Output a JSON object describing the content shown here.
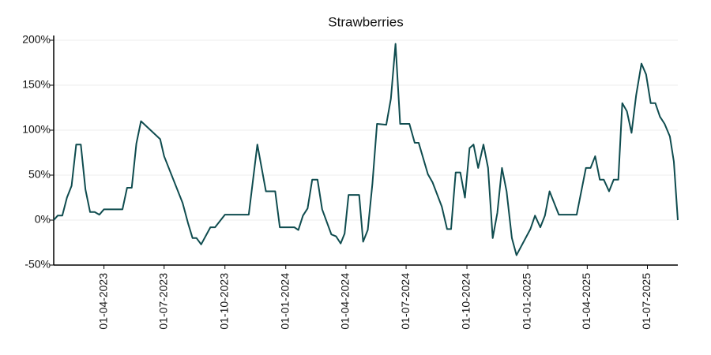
{
  "chart_data": {
    "type": "line",
    "title": "Strawberries",
    "x": [
      "15-01-2023",
      "21-01-2023",
      "28-01-2023",
      "04-02-2023",
      "11-02-2023",
      "18-02-2023",
      "25-02-2023",
      "04-03-2023",
      "11-03-2023",
      "18-03-2023",
      "25-03-2023",
      "01-04-2023",
      "29-04-2023",
      "06-05-2023",
      "13-05-2023",
      "20-05-2023",
      "27-05-2023",
      "25-06-2023",
      "01-07-2023",
      "29-07-2023",
      "06-08-2023",
      "13-08-2023",
      "19-08-2023",
      "26-08-2023",
      "09-09-2023",
      "16-09-2023",
      "01-10-2023",
      "06-11-2023",
      "19-11-2023",
      "02-12-2023",
      "16-12-2023",
      "23-12-2023",
      "14-01-2024",
      "20-01-2024",
      "27-01-2024",
      "03-02-2024",
      "10-02-2024",
      "18-02-2024",
      "25-02-2024",
      "10-03-2024",
      "17-03-2024",
      "24-03-2024",
      "30-03-2024",
      "05-04-2024",
      "21-04-2024",
      "27-04-2024",
      "04-05-2024",
      "11-05-2024",
      "18-05-2024",
      "01-06-2024",
      "08-06-2024",
      "15-06-2024",
      "22-06-2024",
      "06-07-2024",
      "14-07-2024",
      "20-07-2024",
      "03-08-2024",
      "10-08-2024",
      "24-08-2024",
      "01-09-2024",
      "07-09-2024",
      "14-09-2024",
      "21-09-2024",
      "28-09-2024",
      "05-10-2024",
      "11-10-2024",
      "18-10-2024",
      "26-10-2024",
      "02-11-2024",
      "09-11-2024",
      "16-11-2024",
      "23-11-2024",
      "30-11-2024",
      "08-12-2024",
      "15-12-2024",
      "05-01-2025",
      "12-01-2025",
      "20-01-2025",
      "27-01-2025",
      "03-02-2025",
      "17-02-2025",
      "16-03-2025",
      "30-03-2025",
      "06-04-2025",
      "13-04-2025",
      "20-04-2025",
      "26-04-2025",
      "04-05-2025",
      "11-05-2025",
      "18-05-2025",
      "24-05-2025",
      "31-05-2025",
      "07-06-2025",
      "14-06-2025",
      "22-06-2025",
      "29-06-2025",
      "06-07-2025",
      "13-07-2025",
      "20-07-2025",
      "27-07-2025",
      "04-08-2025",
      "10-08-2025",
      "16-08-2025"
    ],
    "series": [
      {
        "name": "Strawberries",
        "color": "#0f4c4f",
        "values": [
          0,
          5,
          5,
          25,
          38,
          84,
          84,
          34,
          9,
          9,
          6,
          12,
          12,
          36,
          36,
          85,
          110,
          90,
          71,
          19,
          -3,
          -20,
          -20,
          -27,
          -8,
          -8,
          6,
          6,
          84,
          32,
          32,
          -8,
          -8,
          -11,
          5,
          13,
          45,
          45,
          12,
          -16,
          -18,
          -26,
          -15,
          28,
          28,
          -24,
          -11,
          40,
          107,
          106,
          135,
          196,
          107,
          107,
          86,
          86,
          51,
          42,
          15,
          -10,
          -10,
          53,
          53,
          25,
          80,
          84,
          58,
          84,
          58,
          -20,
          8,
          58,
          32,
          -20,
          -39,
          -10,
          5,
          -8,
          5,
          32,
          6,
          6,
          58,
          58,
          71,
          45,
          45,
          32,
          45,
          45,
          130,
          121,
          97,
          139,
          174,
          162,
          130,
          130,
          115,
          107,
          93,
          65,
          0
        ]
      }
    ],
    "xlim": [
      "15-01-2023",
      "16-08-2025"
    ],
    "xticks": [
      "01-04-2023",
      "01-07-2023",
      "01-10-2023",
      "01-01-2024",
      "01-04-2024",
      "01-07-2024",
      "01-10-2024",
      "01-01-2025",
      "01-04-2025",
      "01-07-2025"
    ],
    "ylim": [
      -50,
      200
    ],
    "yticks": [
      {
        "value": -50,
        "label": "-50%"
      },
      {
        "value": 0,
        "label": "0%"
      },
      {
        "value": 50,
        "label": "50%"
      },
      {
        "value": 100,
        "label": "100%"
      },
      {
        "value": 150,
        "label": "150%"
      },
      {
        "value": 200,
        "label": "200%"
      }
    ],
    "grid": true
  }
}
